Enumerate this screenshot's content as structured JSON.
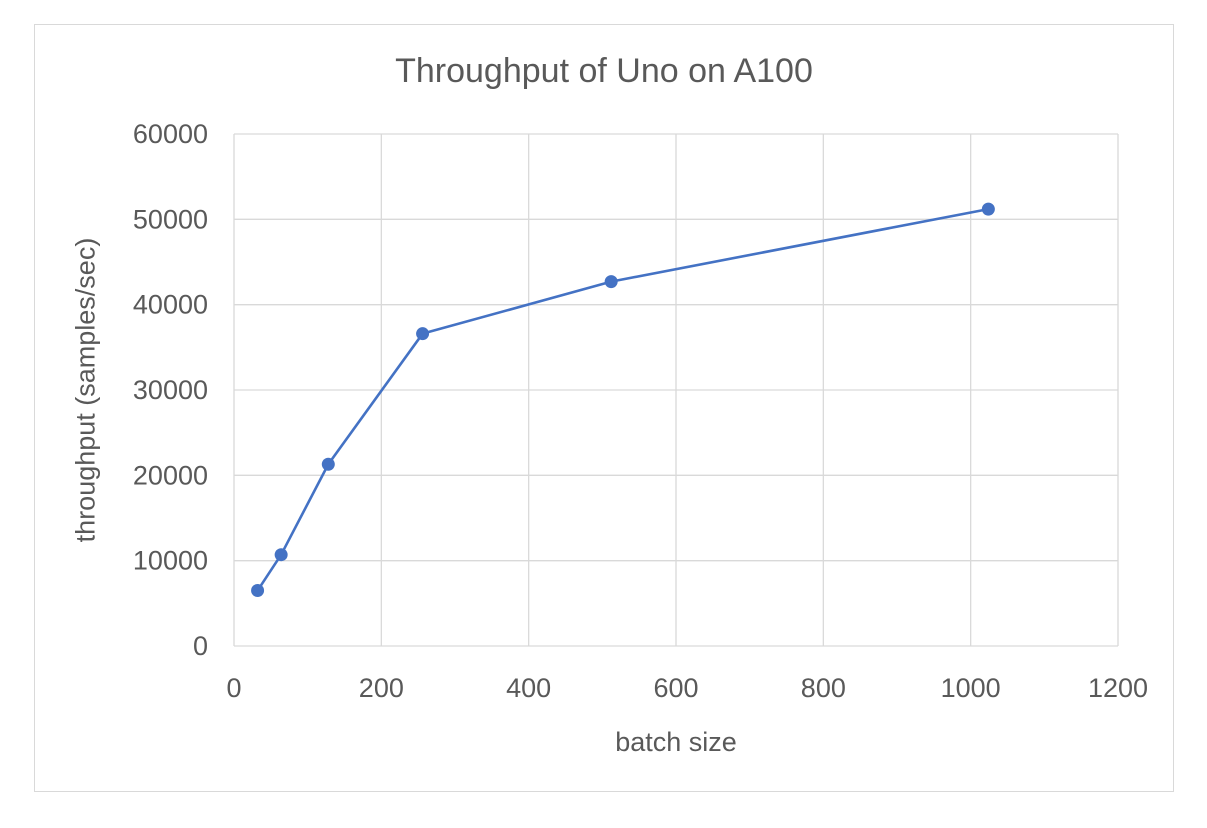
{
  "chart_data": {
    "type": "scatter",
    "title": "Throughput of Uno on A100",
    "xlabel": "batch size",
    "ylabel": "throughput  (samples/sec)",
    "xlim": [
      0,
      1200
    ],
    "ylim": [
      0,
      60000
    ],
    "x_ticks": [
      0,
      200,
      400,
      600,
      800,
      1000,
      1200
    ],
    "y_ticks": [
      0,
      10000,
      20000,
      30000,
      40000,
      50000,
      60000
    ],
    "grid": true,
    "legend": "none",
    "line_color": "#4472c4",
    "series": [
      {
        "x": [
          32,
          64,
          128,
          256,
          512,
          1024
        ],
        "y": [
          6500,
          10700,
          21300,
          36600,
          42700,
          51200
        ]
      }
    ]
  }
}
